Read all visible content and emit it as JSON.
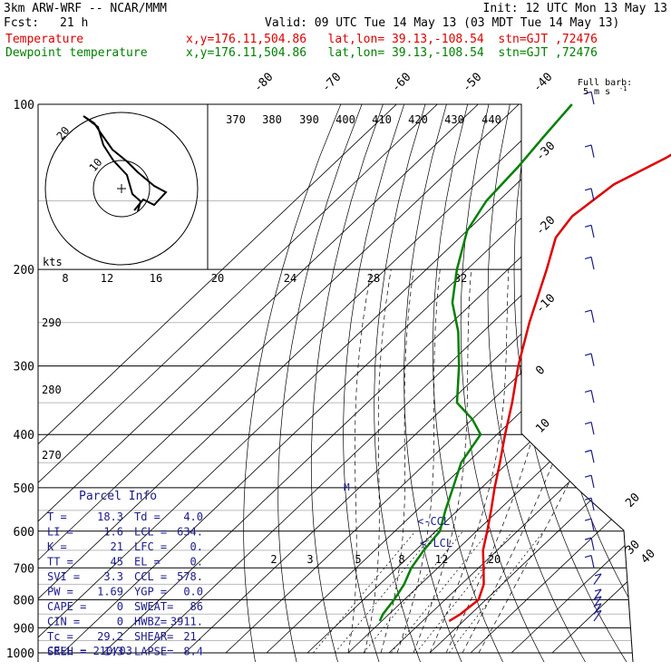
{
  "header": {
    "model": "3km ARW-WRF -- NCAR/MMM",
    "init": "Init: 12 UTC Mon 13 May 13",
    "fcst_label": "Fcst:",
    "fcst_value": "21 h",
    "valid": "Valid: 09 UTC Tue 14 May 13 (03 MDT Tue 14 May 13)",
    "temp_label": "Temperature",
    "temp_info": "x,y=176.11,504.86   lat,lon= 39.13,-108.54  stn=GJT ,72476",
    "dew_label": "Dewpoint temperature",
    "dew_info": "x,y=176.11,504.86   lat,lon= 39.13,-108.54  stn=GJT ,72476"
  },
  "colors": {
    "temperature": "#e00000",
    "dewpoint": "#008000",
    "isotherm": "#000000",
    "wind_barbs": "#1a1a8c",
    "isobar_grid": "#000000"
  },
  "barb_legend": {
    "title": "Full barb:",
    "value": "5 m s",
    "exp": "-1"
  },
  "parcel_info": {
    "title": "Parcel Info",
    "rows": [
      {
        "a": "T   =",
        "b": "18.3",
        "c": "Td  =",
        "d": "4.0"
      },
      {
        "a": "LI  =",
        "b": "1.6",
        "c": "LCL =",
        "d": "634."
      },
      {
        "a": "K   =",
        "b": "21",
        "c": "LFC =",
        "d": "0."
      },
      {
        "a": "TT  =",
        "b": "45",
        "c": "EL  =",
        "d": "0."
      },
      {
        "a": "SVI =",
        "b": "3.3",
        "c": "CCL =",
        "d": "578."
      },
      {
        "a": "PW  =",
        "b": "1.69",
        "c": "YGP =",
        "d": "0.0"
      },
      {
        "a": "CAPE =",
        "b": "0",
        "c": "SWEAT=",
        "d": "86"
      },
      {
        "a": "CIN =",
        "b": "0",
        "c": "HWBZ=",
        "d": "3911."
      },
      {
        "a": "Tc  =",
        "b": "29.2",
        "c": "SHEAR=",
        "d": "21."
      },
      {
        "a": "SREH =",
        "b": "143",
        "c": "LAPSE=",
        "d": "8.4"
      }
    ],
    "cell": "CELL = 210/03"
  },
  "hodograph": {
    "units": "kts",
    "ring_labels": [
      "10",
      "20"
    ]
  },
  "labels": {
    "ccl": "<-CCL",
    "lcl": "<-LCL",
    "parcel_marker": "M"
  },
  "chart_data": {
    "type": "skew-t",
    "pressure_axis": {
      "scale": "log",
      "range": [
        1000,
        100
      ],
      "ticks": [
        100,
        200,
        300,
        400,
        500,
        600,
        700,
        800,
        900,
        1000
      ]
    },
    "isotherm_labels": [
      -80,
      -70,
      -60,
      -50,
      -40,
      -30,
      -20,
      -10,
      0,
      10,
      20,
      30,
      40
    ],
    "mixing_ratio_labels": [
      "2",
      "3",
      "5",
      "8",
      "12",
      "20"
    ],
    "theta_e_labels": [
      "370",
      "380",
      "390",
      "400",
      "410",
      "420",
      "430",
      "440"
    ],
    "theta_labels": [
      "290",
      "280",
      "270"
    ],
    "top_ticks": [
      "8",
      "12",
      "16",
      "20",
      "24",
      "28",
      "32"
    ],
    "temperature": [
      {
        "p": 875,
        "t": 16.5
      },
      {
        "p": 850,
        "t": 17.5
      },
      {
        "p": 800,
        "t": 18.2
      },
      {
        "p": 750,
        "t": 15.5
      },
      {
        "p": 700,
        "t": 11.2
      },
      {
        "p": 650,
        "t": 6.5
      },
      {
        "p": 600,
        "t": 2.6
      },
      {
        "p": 550,
        "t": -1.8
      },
      {
        "p": 500,
        "t": -6.8
      },
      {
        "p": 450,
        "t": -12.0
      },
      {
        "p": 400,
        "t": -18.0
      },
      {
        "p": 350,
        "t": -24.5
      },
      {
        "p": 300,
        "t": -32.5
      },
      {
        "p": 250,
        "t": -41.0
      },
      {
        "p": 200,
        "t": -50.5
      },
      {
        "p": 175,
        "t": -56.5
      },
      {
        "p": 160,
        "t": -58.0
      },
      {
        "p": 140,
        "t": -56.0
      },
      {
        "p": 125,
        "t": -50.0
      },
      {
        "p": 110,
        "t": -45.5
      },
      {
        "p": 100,
        "t": -44.5
      }
    ],
    "dewpoint": [
      {
        "p": 875,
        "t": -0.5
      },
      {
        "p": 850,
        "t": -1.5
      },
      {
        "p": 800,
        "t": -2.5
      },
      {
        "p": 750,
        "t": -4.0
      },
      {
        "p": 700,
        "t": -6.5
      },
      {
        "p": 650,
        "t": -8.0
      },
      {
        "p": 600,
        "t": -9.0
      },
      {
        "p": 550,
        "t": -13.0
      },
      {
        "p": 500,
        "t": -17.0
      },
      {
        "p": 450,
        "t": -21.5
      },
      {
        "p": 400,
        "t": -24.0
      },
      {
        "p": 375,
        "t": -30.0
      },
      {
        "p": 350,
        "t": -38.0
      },
      {
        "p": 300,
        "t": -47.0
      },
      {
        "p": 260,
        "t": -56.0
      },
      {
        "p": 230,
        "t": -65.0
      },
      {
        "p": 200,
        "t": -72.5
      },
      {
        "p": 170,
        "t": -80.0
      },
      {
        "p": 150,
        "t": -83.0
      },
      {
        "p": 130,
        "t": -84.0
      },
      {
        "p": 115,
        "t": -85.5
      },
      {
        "p": 100,
        "t": -87.0
      }
    ],
    "wind_levels_hpa": [
      875,
      850,
      825,
      800,
      750,
      700,
      650,
      600,
      550,
      500,
      450,
      400,
      350,
      300,
      250,
      200,
      175,
      150,
      125,
      100
    ]
  }
}
